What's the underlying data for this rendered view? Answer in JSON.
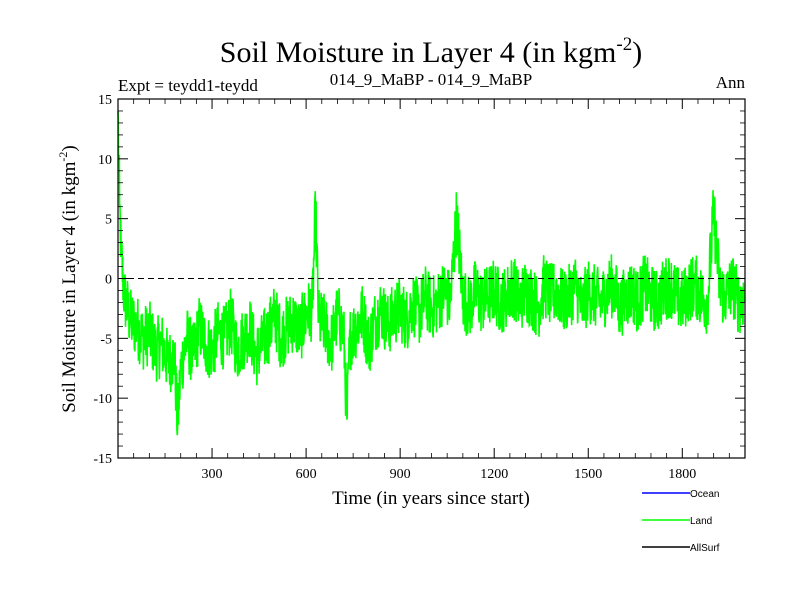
{
  "header": {
    "title_main": "Soil Moisture in Layer 4 (in kgm",
    "title_sup": "-2",
    "title_close": ")",
    "expt": "Expt = teydd1-teydd",
    "subtitle": "014_9_MaBP - 014_9_MaBP",
    "season": "Ann"
  },
  "chart_data": {
    "type": "line",
    "title": "Soil Moisture in Layer 4 (in kgm-2)",
    "xlabel": "Time (in years since start)",
    "ylabel_main": "Soil Moisture in Layer 4 (in kgm",
    "ylabel_sup": "-2",
    "ylabel_close": ")",
    "xlim": [
      0,
      2000
    ],
    "ylim": [
      -15,
      15
    ],
    "x_ticks": [
      300,
      600,
      900,
      1200,
      1500,
      1800
    ],
    "x_tick_labels": [
      "300",
      "600",
      "900",
      "1200",
      "1500",
      "1800"
    ],
    "y_ticks": [
      -15,
      -10,
      -5,
      0,
      5,
      10,
      15
    ],
    "y_tick_labels": [
      "-15",
      "-10",
      "-5",
      "0",
      "5",
      "10",
      "15"
    ],
    "zero_line": {
      "y": 0,
      "style": "dashed",
      "color": "#000000"
    },
    "series": [
      {
        "name": "Ocean",
        "color": "#0000ff",
        "values": []
      },
      {
        "name": "Land",
        "color": "#00ff00",
        "x": [
          0,
          5,
          10,
          20,
          40,
          60,
          80,
          100,
          120,
          140,
          160,
          180,
          190,
          200,
          220,
          240,
          260,
          280,
          300,
          320,
          340,
          360,
          380,
          400,
          420,
          440,
          460,
          480,
          500,
          520,
          540,
          560,
          580,
          600,
          620,
          630,
          640,
          660,
          680,
          700,
          720,
          730,
          740,
          760,
          780,
          800,
          820,
          840,
          860,
          880,
          900,
          920,
          940,
          960,
          980,
          1000,
          1020,
          1040,
          1060,
          1080,
          1100,
          1120,
          1140,
          1160,
          1180,
          1200,
          1220,
          1240,
          1260,
          1280,
          1300,
          1320,
          1340,
          1360,
          1380,
          1400,
          1420,
          1440,
          1460,
          1480,
          1500,
          1520,
          1540,
          1560,
          1580,
          1600,
          1620,
          1640,
          1660,
          1680,
          1700,
          1720,
          1740,
          1760,
          1780,
          1800,
          1820,
          1840,
          1860,
          1880,
          1900,
          1920,
          1940,
          1960,
          1980,
          2000
        ],
        "values": [
          14.0,
          6.0,
          2.0,
          -1.5,
          -3.5,
          -4.0,
          -5.0,
          -4.5,
          -6.0,
          -5.5,
          -7.0,
          -6.5,
          -12.3,
          -7.5,
          -5.0,
          -6.5,
          -4.0,
          -5.5,
          -6.0,
          -4.5,
          -5.0,
          -3.5,
          -6.0,
          -5.0,
          -4.0,
          -6.5,
          -5.5,
          -4.5,
          -3.0,
          -5.0,
          -4.0,
          -3.5,
          -4.5,
          -3.0,
          -2.5,
          5.8,
          -3.5,
          -4.0,
          -5.5,
          -3.0,
          -4.5,
          -11.8,
          -5.0,
          -4.0,
          -3.0,
          -5.5,
          -3.5,
          -2.5,
          -4.0,
          -3.0,
          -2.5,
          -3.5,
          -2.0,
          -3.0,
          -1.5,
          -2.5,
          -2.0,
          -1.0,
          -2.0,
          5.2,
          -1.5,
          -2.5,
          -1.0,
          -2.0,
          -1.5,
          -1.0,
          -2.0,
          -1.5,
          -0.5,
          -2.0,
          -1.0,
          -1.5,
          -2.5,
          -0.5,
          -1.5,
          -1.0,
          -2.0,
          -1.5,
          -0.5,
          -2.5,
          -1.0,
          -1.5,
          -2.0,
          -1.0,
          -0.5,
          -2.5,
          -1.5,
          -1.0,
          -2.0,
          -0.5,
          -1.5,
          -2.0,
          -1.0,
          -0.5,
          -1.5,
          -2.0,
          -1.0,
          -0.5,
          -1.5,
          -2.0,
          5.5,
          -1.0,
          -1.5,
          -0.5,
          -2.0,
          -1.5
        ]
      },
      {
        "name": "AllSurf",
        "color": "#000000",
        "values": []
      }
    ],
    "legend": {
      "placement": "bottom-right",
      "entries": [
        "Ocean",
        "Land",
        "AllSurf"
      ]
    }
  }
}
